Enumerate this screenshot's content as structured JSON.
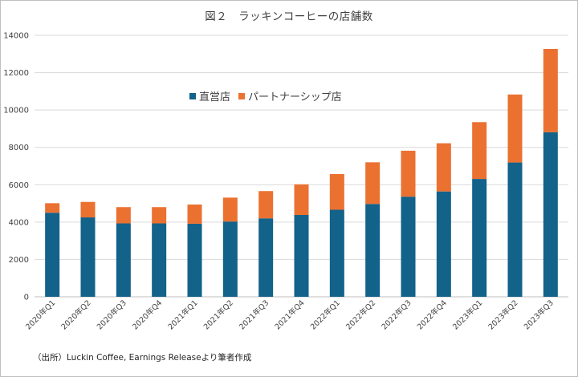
{
  "chart_data": {
    "type": "bar",
    "stacked": true,
    "title": "図２　ラッキンコーヒーの店舗数",
    "categories": [
      "2020年Q1",
      "2020年Q2",
      "2020年Q3",
      "2020年Q4",
      "2021年Q1",
      "2021年Q2",
      "2021年Q3",
      "2021年Q4",
      "2022年Q1",
      "2022年Q2",
      "2022年Q3",
      "2022年Q4",
      "2023年Q1",
      "2023年Q2",
      "2023年Q3"
    ],
    "series": [
      {
        "name": "直営店",
        "color": "#12628A",
        "values": [
          4500,
          4250,
          3930,
          3930,
          3910,
          4030,
          4200,
          4380,
          4660,
          4970,
          5360,
          5640,
          6310,
          7190,
          8810
        ]
      },
      {
        "name": "パートナーシップ店",
        "color": "#EB7131",
        "values": [
          510,
          830,
          870,
          870,
          1030,
          1280,
          1460,
          1640,
          1910,
          2230,
          2460,
          2580,
          3040,
          3640,
          4460
        ]
      }
    ],
    "ylim": [
      0,
      14000
    ],
    "yticks": [
      0,
      2000,
      4000,
      6000,
      8000,
      10000,
      12000,
      14000
    ],
    "grid": true,
    "legend_position": "upper-left",
    "xlabel": "",
    "ylabel": ""
  },
  "source_note": "（出所）Luckin Coffee, Earnings Releaseより筆者作成"
}
